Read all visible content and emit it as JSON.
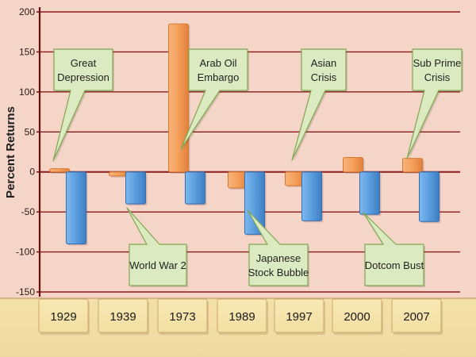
{
  "chart_data": {
    "type": "bar",
    "ylabel": "Percent Returns",
    "ylim": [
      -150,
      200
    ],
    "yticks": [
      200,
      150,
      100,
      50,
      0,
      -50,
      -100,
      -150
    ],
    "grid": true,
    "categories": [
      "1929",
      "1939",
      "1973",
      "1989",
      "1997",
      "2000",
      "2007"
    ],
    "series": [
      {
        "values": [
          4,
          -5,
          185,
          -20,
          -17,
          18,
          17
        ],
        "color": "#f5a25e"
      },
      {
        "values": [
          -90,
          -40,
          -40,
          -78,
          -61,
          -53,
          -62
        ],
        "color": "#5da0e0"
      }
    ],
    "annotations": [
      {
        "text": [
          "Great",
          "Depression"
        ],
        "category": "1929"
      },
      {
        "text": [
          "Arab Oil",
          "Embargo"
        ],
        "category": "1973"
      },
      {
        "text": [
          "Asian",
          "Crisis"
        ],
        "category": "1997"
      },
      {
        "text": [
          "Sub Prime",
          "Crisis"
        ],
        "category": "2007"
      },
      {
        "text": [
          "World War 2"
        ],
        "category": "1939"
      },
      {
        "text": [
          "Japanese",
          "Stock Bubble"
        ],
        "category": "1989"
      },
      {
        "text": [
          "Dotcom Bust"
        ],
        "category": "2000"
      }
    ]
  },
  "colors": {
    "background": "#f5d5c8",
    "gridline": "#8b1a1a",
    "axis": "#6b0f0f",
    "tile": "#f1dfa2",
    "annotation_fill": "#dceac2",
    "annotation_border": "#7fa650"
  }
}
